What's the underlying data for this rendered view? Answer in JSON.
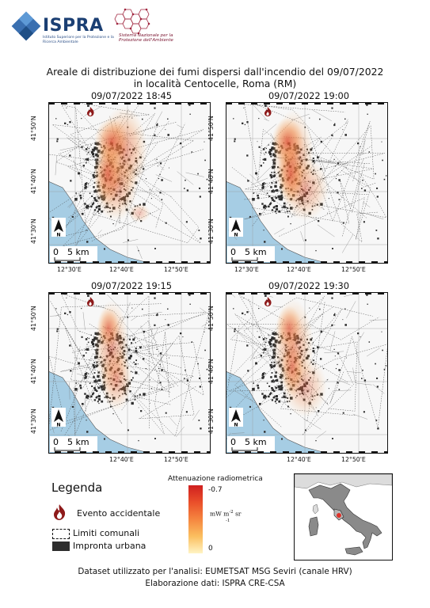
{
  "header": {
    "logo_word": "ISPRA",
    "logo_subtitle": "Istituto Superiore per la Protezione e la Ricerca Ambientale",
    "partner_text": "Sistema Nazionale per la Protezione dell'Ambiente"
  },
  "title": {
    "line1": "Areale di distribuzione dei fumi dispersi dall'incendio del 09/07/2022",
    "line2": "in località Centocelle, Roma (RM)"
  },
  "panels": [
    {
      "label": "09/07/2022 18:45"
    },
    {
      "label": "09/07/2022 19:00"
    },
    {
      "label": "09/07/2022 19:15"
    },
    {
      "label": "09/07/2022 19:30"
    }
  ],
  "axes": {
    "lat_labels": [
      "41°50'N",
      "41°40'N",
      "41°30'N"
    ],
    "lon_labels": [
      "12°30'E",
      "12°40'E",
      "12°50'E"
    ],
    "north": "N",
    "scale": {
      "zero": "0",
      "five": "5 km"
    }
  },
  "legend": {
    "title": "Legenda",
    "items": [
      {
        "icon": "fire-icon",
        "label": "Evento accidentale"
      },
      {
        "icon": "dashed-box-icon",
        "label": "Limiti comunali"
      },
      {
        "icon": "black-box-icon",
        "label": "Impronta urbana"
      }
    ],
    "colorbar": {
      "title": "Attenuazione radiometrica",
      "max": "-0.7",
      "min": "0",
      "unit_main": "mW m",
      "unit_sup": "-2",
      "unit_sr": "sr",
      "unit_sr_sup": "-1"
    }
  },
  "footer": {
    "line1": "Dataset utilizzato per l'analisi: EUMETSAT MSG Seviri (canale HRV)",
    "line2": "Elaborazione dati: ISPRA CRE-CSA"
  },
  "colors": {
    "sea": "#a6cde4",
    "plume_strong": "#d9452a",
    "plume_light": "#f7b66a",
    "urban": "#2e2e2e",
    "brand": "#1b3f73"
  }
}
